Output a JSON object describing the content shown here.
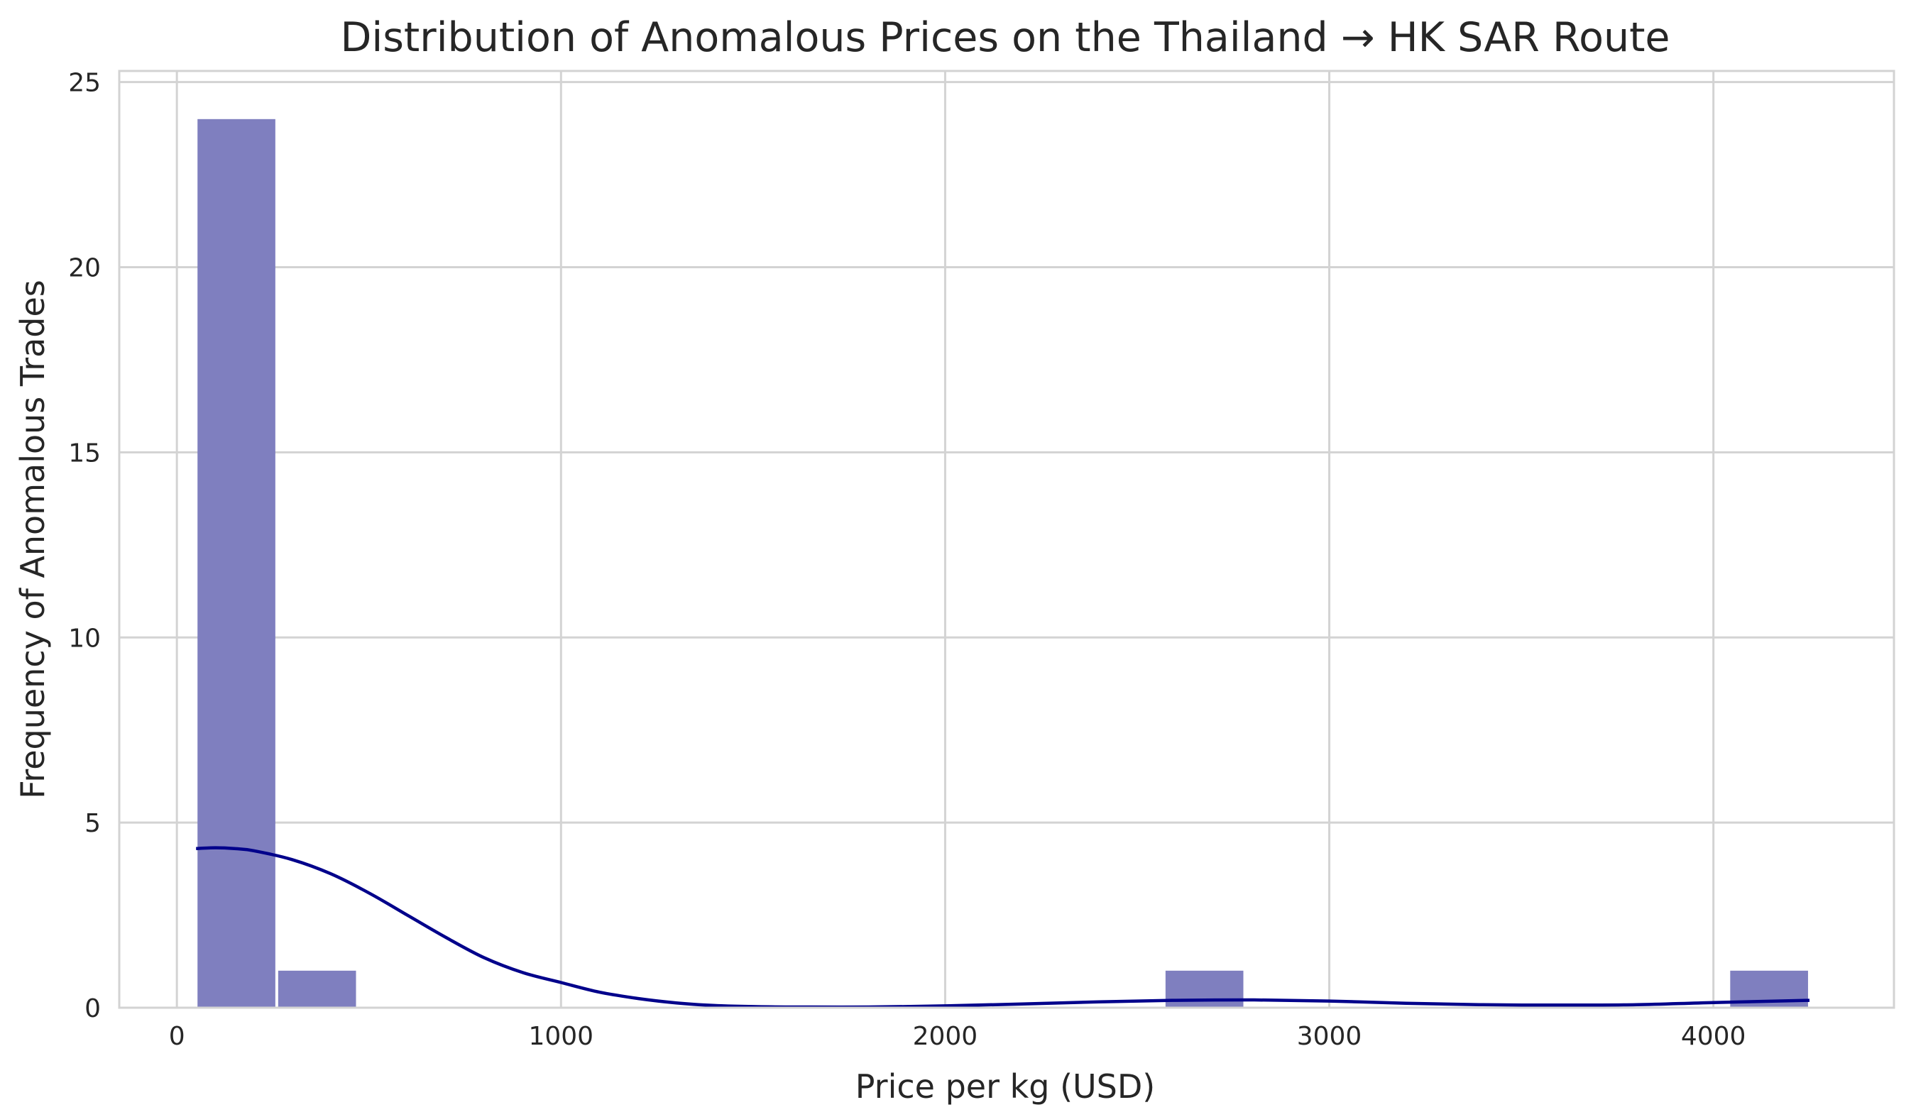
{
  "chart_data": {
    "type": "bar",
    "title": "Distribution of Anomalous Prices on the Thailand → HK SAR Route",
    "xlabel": "Price per kg (USD)",
    "ylabel": "Frequency of Anomalous Trades",
    "xlim": [
      -150,
      4470
    ],
    "ylim": [
      0,
      25.3
    ],
    "xticks": [
      0,
      1000,
      2000,
      3000,
      4000
    ],
    "yticks": [
      0,
      5,
      10,
      15,
      20,
      25
    ],
    "grid": true,
    "bar_color": "#7f7fbf",
    "kde_color": "#00008b",
    "bins": [
      {
        "x0": 50,
        "x1": 260,
        "count": 24
      },
      {
        "x0": 260,
        "x1": 470,
        "count": 1
      },
      {
        "x0": 470,
        "x1": 680,
        "count": 0
      },
      {
        "x0": 680,
        "x1": 890,
        "count": 0
      },
      {
        "x0": 890,
        "x1": 1100,
        "count": 0
      },
      {
        "x0": 1100,
        "x1": 1310,
        "count": 0
      },
      {
        "x0": 1310,
        "x1": 1520,
        "count": 0
      },
      {
        "x0": 1520,
        "x1": 1730,
        "count": 0
      },
      {
        "x0": 1730,
        "x1": 1940,
        "count": 0
      },
      {
        "x0": 1940,
        "x1": 2150,
        "count": 0
      },
      {
        "x0": 2150,
        "x1": 2360,
        "count": 0
      },
      {
        "x0": 2360,
        "x1": 2570,
        "count": 0
      },
      {
        "x0": 2570,
        "x1": 2780,
        "count": 1
      },
      {
        "x0": 2780,
        "x1": 2990,
        "count": 0
      },
      {
        "x0": 2990,
        "x1": 3200,
        "count": 0
      },
      {
        "x0": 3200,
        "x1": 3410,
        "count": 0
      },
      {
        "x0": 3410,
        "x1": 3620,
        "count": 0
      },
      {
        "x0": 3620,
        "x1": 3830,
        "count": 0
      },
      {
        "x0": 3830,
        "x1": 4040,
        "count": 0
      },
      {
        "x0": 4040,
        "x1": 4250,
        "count": 1
      }
    ],
    "kde": {
      "x": [
        50,
        100,
        150,
        200,
        300,
        400,
        500,
        600,
        700,
        800,
        900,
        1000,
        1100,
        1200,
        1300,
        1400,
        1500,
        1600,
        1800,
        2000,
        2200,
        2400,
        2600,
        2800,
        3000,
        3200,
        3400,
        3600,
        3800,
        4000,
        4250
      ],
      "y": [
        4.3,
        4.32,
        4.3,
        4.24,
        4.0,
        3.62,
        3.1,
        2.5,
        1.9,
        1.35,
        0.95,
        0.68,
        0.42,
        0.25,
        0.13,
        0.06,
        0.03,
        0.02,
        0.02,
        0.05,
        0.1,
        0.16,
        0.2,
        0.21,
        0.18,
        0.12,
        0.08,
        0.07,
        0.08,
        0.14,
        0.2
      ]
    }
  }
}
